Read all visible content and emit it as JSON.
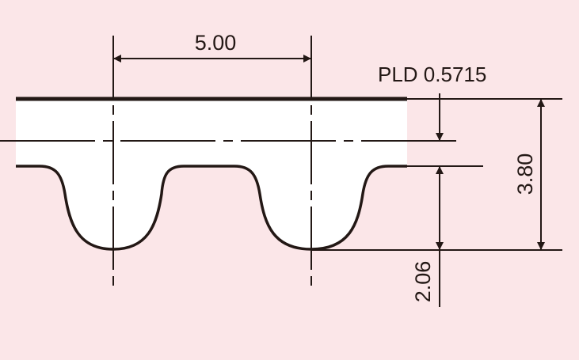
{
  "diagram": {
    "pitch_label": "5.00",
    "pld_label": "PLD 0.5715",
    "total_height_label": "3.80",
    "tooth_height_label": "2.06"
  },
  "colors": {
    "background": "#fbe6e8",
    "belt_fill": "#ffffff",
    "line": "#231815"
  }
}
